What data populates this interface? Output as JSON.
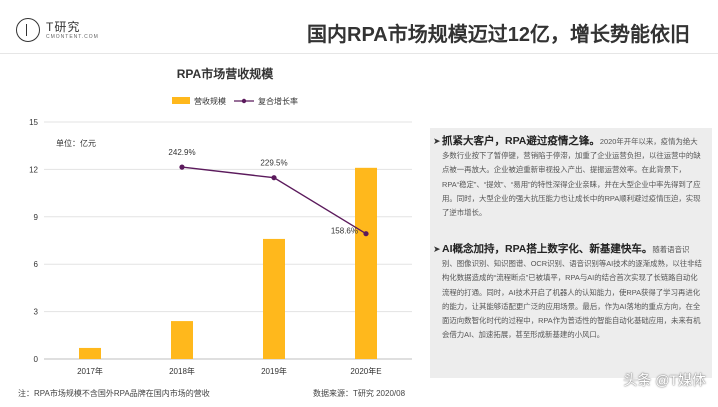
{
  "header": {
    "logo_text": "T研究",
    "logo_sub": "CMONTENT.COM",
    "title": "国内RPA市场规模迈过12亿，增长势能依旧"
  },
  "chart_data": {
    "type": "bar",
    "title": "RPA市场营收规模",
    "unit_label": "单位：亿元",
    "categories": [
      "2017年",
      "2018年",
      "2019年",
      "2020年E"
    ],
    "series": [
      {
        "name": "营收规模",
        "type": "bar",
        "values": [
          0.7,
          2.4,
          7.6,
          12.1
        ],
        "color": "#FFB81C"
      },
      {
        "name": "复合增长率",
        "type": "line",
        "values": [
          null,
          242.9,
          229.5,
          158.6
        ],
        "labels": [
          "",
          "242.9%",
          "229.5%",
          "158.6%"
        ],
        "color": "#5B1A5C"
      }
    ],
    "y_ticks": [
      "0",
      "3",
      "6",
      "9",
      "12",
      "15"
    ],
    "ylim": [
      0,
      15
    ],
    "legend_position": "top",
    "grid": true
  },
  "panel": {
    "bullet1": {
      "head": "抓紧大客户，RPA避过疫情之锋。",
      "body": "2020年开年以来，疫情为绝大多数行业按下了暂停键，营销陷于停滞，加重了企业运营负担，以往运营中的缺点被一再放大。企业被迫重新审视投入产出、提振运营效率。在此背景下，RPA“稳定”、“提效”、“易用”的特性深得企业亲睐，并在大型企业中率先得到了应用。同时，大型企业的强大抗压能力也让成长中的RPA顺利避过疫情压迫，实现了逆市增长。"
    },
    "bullet2": {
      "head": "AI概念加持，RPA搭上数字化、新基建快车。",
      "body": "随着语音识别、图像识别、知识图谱、OCR识别、语音识别等AI技术的逐渐成熟，以往非结构化数据造成的“流程断点”已被填平，RPA与AI的结合首次实现了长链路自动化流程的打通。同时，AI技术开启了机器人的认知能力，使RPA获得了学习再进化的能力，让其能够适配更广泛的应用场景。最后，作为AI落地的重点方向，在全面迈向数智化时代的过程中，RPA作为普适性的智能自动化基础应用，未来有机会借力AI、加速拓展，甚至形成新基建的小风口。"
    }
  },
  "footer": {
    "note": "注：RPA市场规模不含国外RPA品牌在国内市场的营收",
    "source": "数据来源：T研究 2020/08",
    "watermark": "头条 @T媒体"
  }
}
